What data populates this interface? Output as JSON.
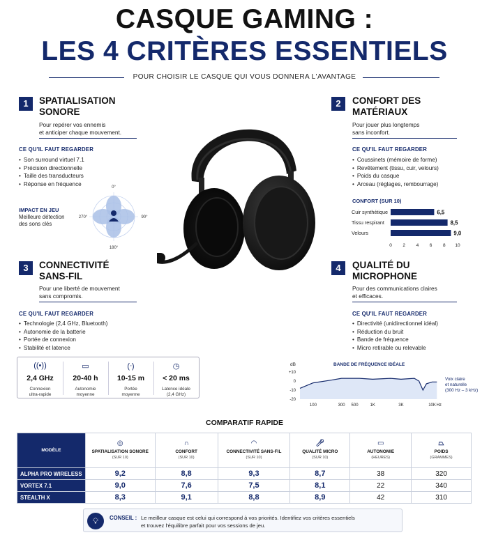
{
  "header": {
    "title_line1": "CASQUE GAMING :",
    "title_line2": "LES 4 CRITÈRES ESSENTIELS",
    "subtitle": "POUR CHOISIR LE CASQUE QUI VOUS DONNERA L'AVANTAGE"
  },
  "sections": [
    {
      "number": "1",
      "title_l1": "SPATIALISATION",
      "title_l2": "SONORE",
      "desc_l1": "Pour repérer vos ennemis",
      "desc_l2": "et anticiper chaque mouvement.",
      "look_label": "CE QU'IL FAUT REGARDER",
      "bullets": [
        "Son surround virtuel 7.1",
        "Précision directionnelle",
        "Taille des transducteurs",
        "Réponse en fréquence"
      ]
    },
    {
      "number": "2",
      "title_l1": "CONFORT DES",
      "title_l2": "MATÉRIAUX",
      "desc_l1": "Pour jouer plus longtemps",
      "desc_l2": "sans inconfort.",
      "look_label": "CE QU'IL FAUT REGARDER",
      "bullets": [
        "Coussinets (mémoire de forme)",
        "Revêtement (tissu, cuir, velours)",
        "Poids du casque",
        "Arceau (réglages, rembourrage)"
      ]
    },
    {
      "number": "3",
      "title_l1": "CONNECTIVITÉ",
      "title_l2": "SANS-FIL",
      "desc_l1": "Pour une liberté de mouvement",
      "desc_l2": "sans compromis.",
      "look_label": "CE QU'IL FAUT REGARDER",
      "bullets": [
        "Technologie (2,4 GHz, Bluetooth)",
        "Autonomie de la batterie",
        "Portée de connexion",
        "Stabilité et latence"
      ]
    },
    {
      "number": "4",
      "title_l1": "QUALITÉ DU",
      "title_l2": "MICROPHONE",
      "desc_l1": "Pour des communications claires",
      "desc_l2": "et efficaces.",
      "look_label": "CE QU'IL FAUT REGARDER",
      "bullets": [
        "Directivité (unidirectionnel idéal)",
        "Réduction du bruit",
        "Bande de fréquence",
        "Micro retirable ou relevable"
      ]
    }
  ],
  "impact": {
    "label": "IMPACT EN JEU",
    "desc_l1": "Meilleure détection",
    "desc_l2": "des sons clés",
    "angles": [
      "0°",
      "90°",
      "180°",
      "270°"
    ]
  },
  "comfort_chart": {
    "title": "CONFORT (SUR 10)"
  },
  "chart_data": [
    {
      "type": "bar",
      "orientation": "horizontal",
      "title": "CONFORT (SUR 10)",
      "categories": [
        "Cuir synthétique",
        "Tissu respirant",
        "Velours"
      ],
      "values": [
        6.5,
        8.5,
        9.0
      ],
      "value_labels": [
        "6,5",
        "8,5",
        "9,0"
      ],
      "xlim": [
        0,
        10
      ],
      "xticks": [
        "0",
        "2",
        "4",
        "6",
        "8",
        "10"
      ],
      "grid": false
    },
    {
      "type": "line",
      "title": "BANDE DE FRÉQUENCE IDÉALE",
      "ylabel": "dB",
      "x_scale": "log",
      "x": [
        60,
        100,
        200,
        300,
        600,
        1000,
        2000,
        3000,
        5000,
        6000,
        7000,
        8000,
        10000,
        12000
      ],
      "y": [
        -8,
        -2,
        1,
        3,
        3,
        2,
        3,
        2,
        3,
        0,
        -10,
        -3,
        -1,
        -1
      ],
      "xlim": [
        60,
        14000
      ],
      "ylim": [
        -20,
        10
      ],
      "yticks": [
        "+10",
        "0",
        "-10",
        "-20"
      ],
      "xticks": [
        "100",
        "300",
        "1K",
        "3K",
        "10K"
      ],
      "xticks_values": [
        100,
        300,
        1000,
        3000,
        10000
      ],
      "x_extra_labels": [
        "500",
        "5K",
        "Hz"
      ],
      "annotation": {
        "line1": "Voix claire",
        "line2": "et naturelle",
        "line3": "(300 Hz – 3 kHz)"
      }
    }
  ],
  "wireless_stats": [
    {
      "icon": "wifi-icon",
      "value": "2,4 GHz",
      "label_l1": "Connexion",
      "label_l2": "ultra-rapide"
    },
    {
      "icon": "battery-icon",
      "value": "20-40 h",
      "label_l1": "Autonomie",
      "label_l2": "moyenne"
    },
    {
      "icon": "antenna-icon",
      "value": "10-15 m",
      "label_l1": "Portée",
      "label_l2": "moyenne"
    },
    {
      "icon": "clock-icon",
      "value": "< 20 ms",
      "label_l1": "Latence idéale",
      "label_l2": "(2,4 GHz)"
    }
  ],
  "comparison": {
    "title": "COMPARATIF RAPIDE",
    "model_header": "MODÈLE",
    "columns": [
      {
        "icon": "target-icon",
        "label": "SPATIALISATION SONORE",
        "sub": "(SUR 10)"
      },
      {
        "icon": "headphone-icon",
        "label": "CONFORT",
        "sub": "(SUR 10)"
      },
      {
        "icon": "wifi-icon",
        "label": "CONNECTIVITÉ SANS-FIL",
        "sub": "(SUR 10)"
      },
      {
        "icon": "mic-icon",
        "label": "QUALITÉ MICRO",
        "sub": "(SUR 10)"
      },
      {
        "icon": "battery-icon",
        "label": "AUTONOMIE",
        "sub": "(HEURES)"
      },
      {
        "icon": "weight-icon",
        "label": "POIDS",
        "sub": "(GRAMMES)"
      }
    ],
    "rows": [
      {
        "model": "ALPHA PRO WIRELESS",
        "values": [
          "9,2",
          "8,8",
          "9,3",
          "8,7",
          "38",
          "320"
        ]
      },
      {
        "model": "VORTEX 7.1",
        "values": [
          "9,0",
          "7,6",
          "7,5",
          "8,1",
          "22",
          "340"
        ]
      },
      {
        "model": "STEALTH X",
        "values": [
          "8,3",
          "9,1",
          "8,8",
          "8,9",
          "42",
          "310"
        ]
      }
    ]
  },
  "tip": {
    "label": "CONSEIL :",
    "line1": "Le meilleur casque est celui qui correspond à vos priorités. Identifiez vos critères essentiels",
    "line2": "et trouvez l'équilibre parfait pour vos sessions de jeu."
  },
  "colors": {
    "navy": "#14296b",
    "black": "#121212",
    "light_blue": "#a9bfe6"
  }
}
